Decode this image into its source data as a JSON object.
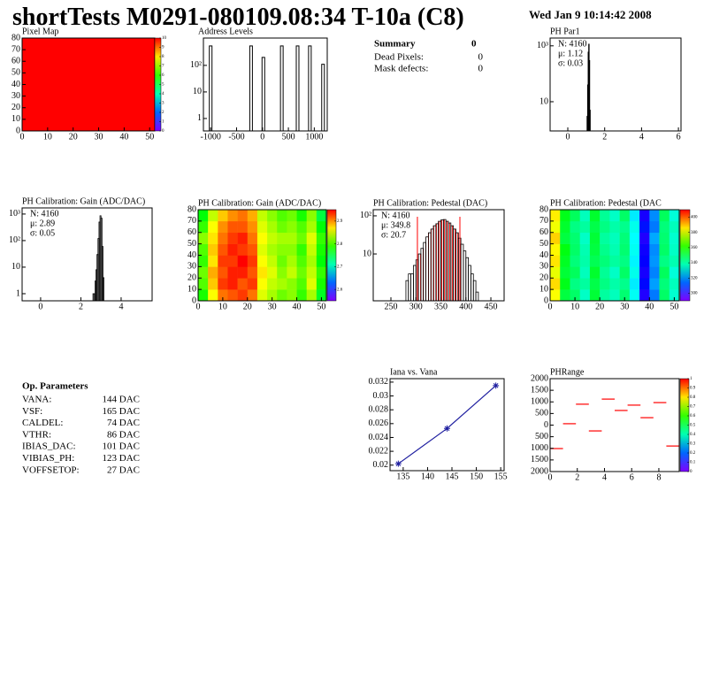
{
  "header": {
    "title": "shortTests M0291-080109.08:34 T-10a (C8)",
    "date": "Wed Jan  9 10:14:42 2008"
  },
  "summary": {
    "title": "Summary",
    "value": 0,
    "rows": [
      [
        "Dead Pixels:",
        0
      ],
      [
        "Mask defects:",
        0
      ]
    ]
  },
  "op_parameters": {
    "title": "Op. Parameters",
    "rows": [
      [
        "VANA:",
        "144 DAC"
      ],
      [
        "VSF:",
        "165 DAC"
      ],
      [
        "CALDEL:",
        "74 DAC"
      ],
      [
        "VTHR:",
        "86 DAC"
      ],
      [
        "IBIAS_DAC:",
        "101 DAC"
      ],
      [
        "VIBIAS_PH:",
        "123 DAC"
      ],
      [
        "VOFFSETOP:",
        "27 DAC"
      ]
    ]
  },
  "chart_data": [
    {
      "type": "heatmap",
      "title": "Pixel Map",
      "xbins": [
        0,
        52
      ],
      "ybins": [
        0,
        80
      ],
      "z": [
        [
          10
        ]
      ],
      "xlim": [
        0,
        52
      ],
      "ylim": [
        0,
        80
      ],
      "xticks": [
        0,
        10,
        20,
        30,
        40,
        50
      ],
      "yticks": [
        0,
        10,
        20,
        30,
        40,
        50,
        60,
        70,
        80
      ],
      "zlim": [
        0,
        10
      ],
      "zticks": [
        0,
        1,
        2,
        3,
        4,
        5,
        6,
        7,
        8,
        9,
        10
      ]
    },
    {
      "type": "bar",
      "title": "Address Levels",
      "x": [
        -1000,
        -220,
        17,
        373,
        678,
        915,
        1169
      ],
      "values": [
        540,
        540,
        200,
        540,
        540,
        540,
        110
      ],
      "color": "#000000",
      "xlim": [
        -1140,
        1250
      ],
      "ylim": [
        0.34,
        1070
      ],
      "log_y": true,
      "xticks": [
        -1000,
        -500,
        0,
        500,
        1000
      ],
      "yticks": [
        1,
        10,
        {
          "value": 100,
          "label": "10²"
        }
      ]
    },
    {
      "type": "histogram",
      "title": "PH Par1",
      "bins": [
        1.04,
        1.07,
        1.1,
        1.13,
        1.16,
        1.19,
        1.22
      ],
      "values": [
        3,
        40,
        600,
        1150,
        300,
        5
      ],
      "color": "#000000",
      "xlim": [
        -0.96,
        6.14
      ],
      "ylim": [
        0.9,
        1900
      ],
      "log_y": true,
      "xticks": [
        0,
        2,
        4,
        6
      ],
      "yticks": [
        10,
        {
          "value": 1000,
          "label": "10³"
        }
      ],
      "stats": [
        "N: 4160",
        "μ: 1.12",
        "σ: 0.03"
      ]
    },
    {
      "type": "histogram",
      "title": "PH Calibration: Gain (ADC/DAC)",
      "bins": [
        2.6,
        2.65,
        2.7,
        2.75,
        2.8,
        2.85,
        2.9,
        2.95,
        3.0,
        3.05,
        3.1,
        3.15
      ],
      "values": [
        1,
        1,
        3,
        8,
        30,
        120,
        500,
        860,
        700,
        60,
        4
      ],
      "color": "#000000",
      "xlim": [
        -0.92,
        5.54
      ],
      "ylim": [
        0.54,
        1700
      ],
      "log_y": true,
      "xticks": [
        0,
        2,
        4
      ],
      "yticks": [
        1,
        10,
        {
          "value": 100,
          "label": "10²"
        },
        {
          "value": 1000,
          "label": "10³"
        }
      ],
      "stats": [
        "N: 4160",
        "μ: 2.89",
        "σ: 0.05"
      ]
    },
    {
      "type": "heatmap",
      "title": "PH Calibration: Gain (ADC/DAC)",
      "xbins": [
        0,
        4,
        8,
        12,
        16,
        20,
        24,
        28,
        32,
        36,
        40,
        44,
        48,
        52
      ],
      "ybins": [
        0,
        10,
        20,
        30,
        40,
        50,
        60,
        70,
        80
      ],
      "z": [
        [
          2.78,
          2.86,
          2.91,
          2.92,
          2.93,
          2.91,
          2.85,
          2.83,
          2.81,
          2.82,
          2.79,
          2.83,
          2.76
        ],
        [
          2.8,
          2.88,
          2.93,
          2.94,
          2.92,
          2.93,
          2.86,
          2.84,
          2.83,
          2.82,
          2.8,
          2.85,
          2.78
        ],
        [
          2.81,
          2.89,
          2.92,
          2.94,
          2.94,
          2.92,
          2.87,
          2.85,
          2.82,
          2.84,
          2.81,
          2.84,
          2.79
        ],
        [
          2.79,
          2.87,
          2.93,
          2.93,
          2.95,
          2.93,
          2.86,
          2.84,
          2.81,
          2.83,
          2.8,
          2.83,
          2.77
        ],
        [
          2.8,
          2.88,
          2.92,
          2.94,
          2.93,
          2.92,
          2.85,
          2.83,
          2.82,
          2.82,
          2.79,
          2.84,
          2.78
        ],
        [
          2.82,
          2.87,
          2.91,
          2.93,
          2.94,
          2.91,
          2.86,
          2.84,
          2.83,
          2.83,
          2.81,
          2.85,
          2.79
        ],
        [
          2.79,
          2.86,
          2.9,
          2.92,
          2.92,
          2.9,
          2.85,
          2.83,
          2.81,
          2.82,
          2.8,
          2.83,
          2.77
        ],
        [
          2.77,
          2.84,
          2.88,
          2.9,
          2.91,
          2.89,
          2.84,
          2.82,
          2.8,
          2.81,
          2.78,
          2.82,
          2.75
        ]
      ],
      "xlim": [
        0,
        52
      ],
      "ylim": [
        0,
        80
      ],
      "xticks": [
        0,
        10,
        20,
        30,
        40,
        50
      ],
      "yticks": [
        0,
        10,
        20,
        30,
        40,
        50,
        60,
        70,
        80
      ],
      "zlim": [
        2.55,
        2.95
      ],
      "zticks": [
        2.6,
        2.7,
        2.8,
        2.9
      ]
    },
    {
      "type": "histogram",
      "title": "PH Calibration: Pedestal (DAC)",
      "bins": [
        280,
        285,
        290,
        295,
        300,
        305,
        310,
        315,
        320,
        325,
        330,
        335,
        340,
        345,
        350,
        355,
        360,
        365,
        370,
        375,
        380,
        385,
        390,
        395,
        400,
        405,
        410,
        415,
        420,
        425
      ],
      "values": [
        2,
        3,
        3,
        5,
        7,
        10,
        14,
        20,
        28,
        36,
        45,
        55,
        62,
        72,
        78,
        80,
        72,
        65,
        55,
        45,
        36,
        26,
        18,
        12,
        8,
        5,
        3,
        2,
        1
      ],
      "color": "#000000",
      "xlim": [
        214.6,
        476.5
      ],
      "ylim": [
        0.59,
        145
      ],
      "log_y": true,
      "xticks": [
        250,
        300,
        350,
        400,
        450
      ],
      "yticks": [
        10,
        {
          "value": 100,
          "label": "10²"
        }
      ],
      "cuts": [
        303,
        388
      ],
      "cut_color": "#ff0000",
      "stats": [
        "N: 4160",
        "μ: 349.8",
        "σ: 20.7"
      ],
      "stats_colors": [
        "#000000",
        "#ff0000",
        "#ff0000"
      ]
    },
    {
      "type": "heatmap",
      "title": "PH Calibration: Pedestal (DAC",
      "xbins": [
        0,
        4,
        8,
        12,
        16,
        20,
        24,
        28,
        32,
        36,
        40,
        44,
        48,
        52
      ],
      "ybins": [
        0,
        10,
        20,
        30,
        40,
        50,
        60,
        70,
        80
      ],
      "z": [
        [
          383,
          350,
          346,
          336,
          351,
          340,
          337,
          345,
          331,
          300,
          316,
          346,
          335
        ],
        [
          387,
          354,
          343,
          340,
          349,
          343,
          339,
          342,
          328,
          304,
          320,
          344,
          337
        ],
        [
          381,
          351,
          347,
          337,
          352,
          341,
          336,
          346,
          332,
          301,
          317,
          347,
          334
        ],
        [
          386,
          353,
          344,
          339,
          348,
          344,
          340,
          343,
          329,
          303,
          319,
          343,
          338
        ],
        [
          384,
          355,
          346,
          338,
          350,
          342,
          338,
          345,
          331,
          302,
          318,
          346,
          336
        ],
        [
          388,
          350,
          345,
          336,
          351,
          340,
          337,
          344,
          330,
          300,
          321,
          345,
          335
        ],
        [
          382,
          352,
          343,
          340,
          349,
          343,
          339,
          342,
          332,
          305,
          316,
          344,
          337
        ],
        [
          385,
          354,
          347,
          337,
          352,
          341,
          336,
          346,
          328,
          301,
          318,
          347,
          334
        ]
      ],
      "xlim": [
        0,
        52
      ],
      "ylim": [
        0,
        80
      ],
      "xticks": [
        0,
        10,
        20,
        30,
        40,
        50
      ],
      "yticks": [
        0,
        10,
        20,
        30,
        40,
        50,
        60,
        70,
        80
      ],
      "zlim": [
        290,
        410
      ],
      "zticks": [
        300,
        320,
        340,
        360,
        380,
        400
      ]
    },
    {
      "type": "line",
      "title": "Iana vs. Vana",
      "x": [
        134,
        144,
        154
      ],
      "values": [
        0.0202,
        0.0253,
        0.0315
      ],
      "color": "#1f1fa0",
      "xlim": [
        132.3,
        155.7
      ],
      "ylim": [
        0.0192,
        0.0325
      ],
      "xticks": [
        135,
        140,
        145,
        150,
        155
      ],
      "yticks": [
        0.02,
        0.022,
        0.024,
        0.026,
        0.028,
        0.03,
        0.032
      ]
    },
    {
      "type": "histogram",
      "histtype": "markers",
      "title": "PHRange",
      "bins": [
        0,
        0.95,
        1.9,
        2.85,
        3.8,
        4.75,
        5.7,
        6.65,
        7.6,
        8.55,
        9.5
      ],
      "values": [
        -1010,
        60,
        900,
        -250,
        1120,
        630,
        860,
        320,
        970,
        -900
      ],
      "color": "#ff0000",
      "xlim": [
        0,
        9.5
      ],
      "ylim": [
        -2000,
        2000
      ],
      "xticks": [
        0,
        2,
        4,
        6,
        8
      ],
      "yticks": [
        {
          "value": -2000,
          "label": "2000"
        },
        {
          "value": -1500,
          "label": "1500"
        },
        {
          "value": -1000,
          "label": "1000"
        },
        {
          "value": -500,
          "label": "500"
        },
        0,
        500,
        1000,
        1500,
        2000
      ],
      "zlim": [
        0,
        1
      ],
      "zticks": [
        0,
        0.1,
        0.2,
        0.3,
        0.4,
        0.5,
        0.6,
        0.7,
        0.8,
        0.9,
        1
      ]
    }
  ]
}
